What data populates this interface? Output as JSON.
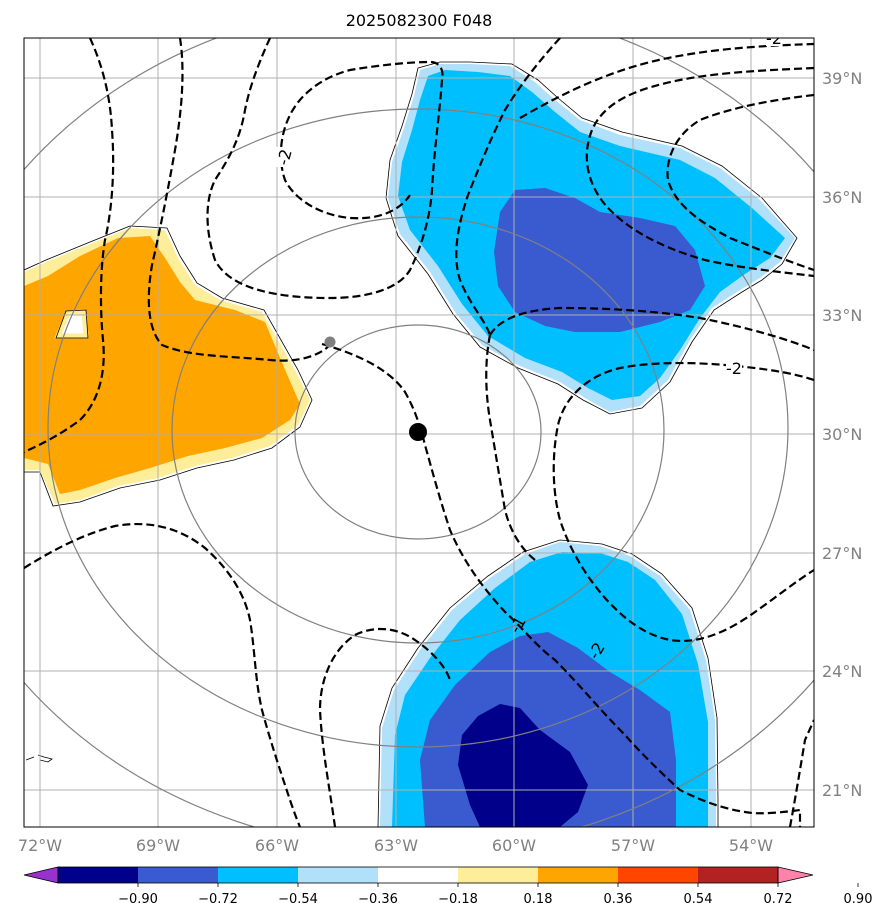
{
  "title": "2025082300 F048",
  "lon_labels": [
    "72°W",
    "69°W",
    "66°W",
    "63°W",
    "60°W",
    "57°W",
    "54°W"
  ],
  "lat_labels": [
    "39°N",
    "36°N",
    "33°N",
    "30°N",
    "27°N",
    "24°N",
    "21°N"
  ],
  "lon_range": [
    -72.3,
    -52.3
  ],
  "lat_range": [
    20.0,
    39.9
  ],
  "center": {
    "lon": -62.5,
    "lat": 30.0
  },
  "colorbar": {
    "ticks": [
      "−0.90",
      "−0.72",
      "−0.54",
      "−0.36",
      "−0.18",
      "0.18",
      "0.36",
      "0.54",
      "0.72",
      "0.90"
    ],
    "colors": [
      "#9932CC",
      "#00008B",
      "#3A5AD0",
      "#00BFFF",
      "#B0E0FA",
      "#FFFFFF",
      "#FFEE99",
      "#FFA500",
      "#FF4500",
      "#B22222",
      "#FF82AB"
    ]
  },
  "contour_labels": [
    "-2",
    "-2",
    "-2",
    "-1",
    "-2",
    "-2"
  ],
  "colors": {
    "grid": "#b0b0b0",
    "range_rings": "#808080",
    "dark_blue": "#00008B",
    "mid_blue": "#3A5AD0",
    "cyan": "#00BFFF",
    "light_blue": "#B0E0FA",
    "yellow": "#FFEE99",
    "orange": "#FFA500"
  }
}
